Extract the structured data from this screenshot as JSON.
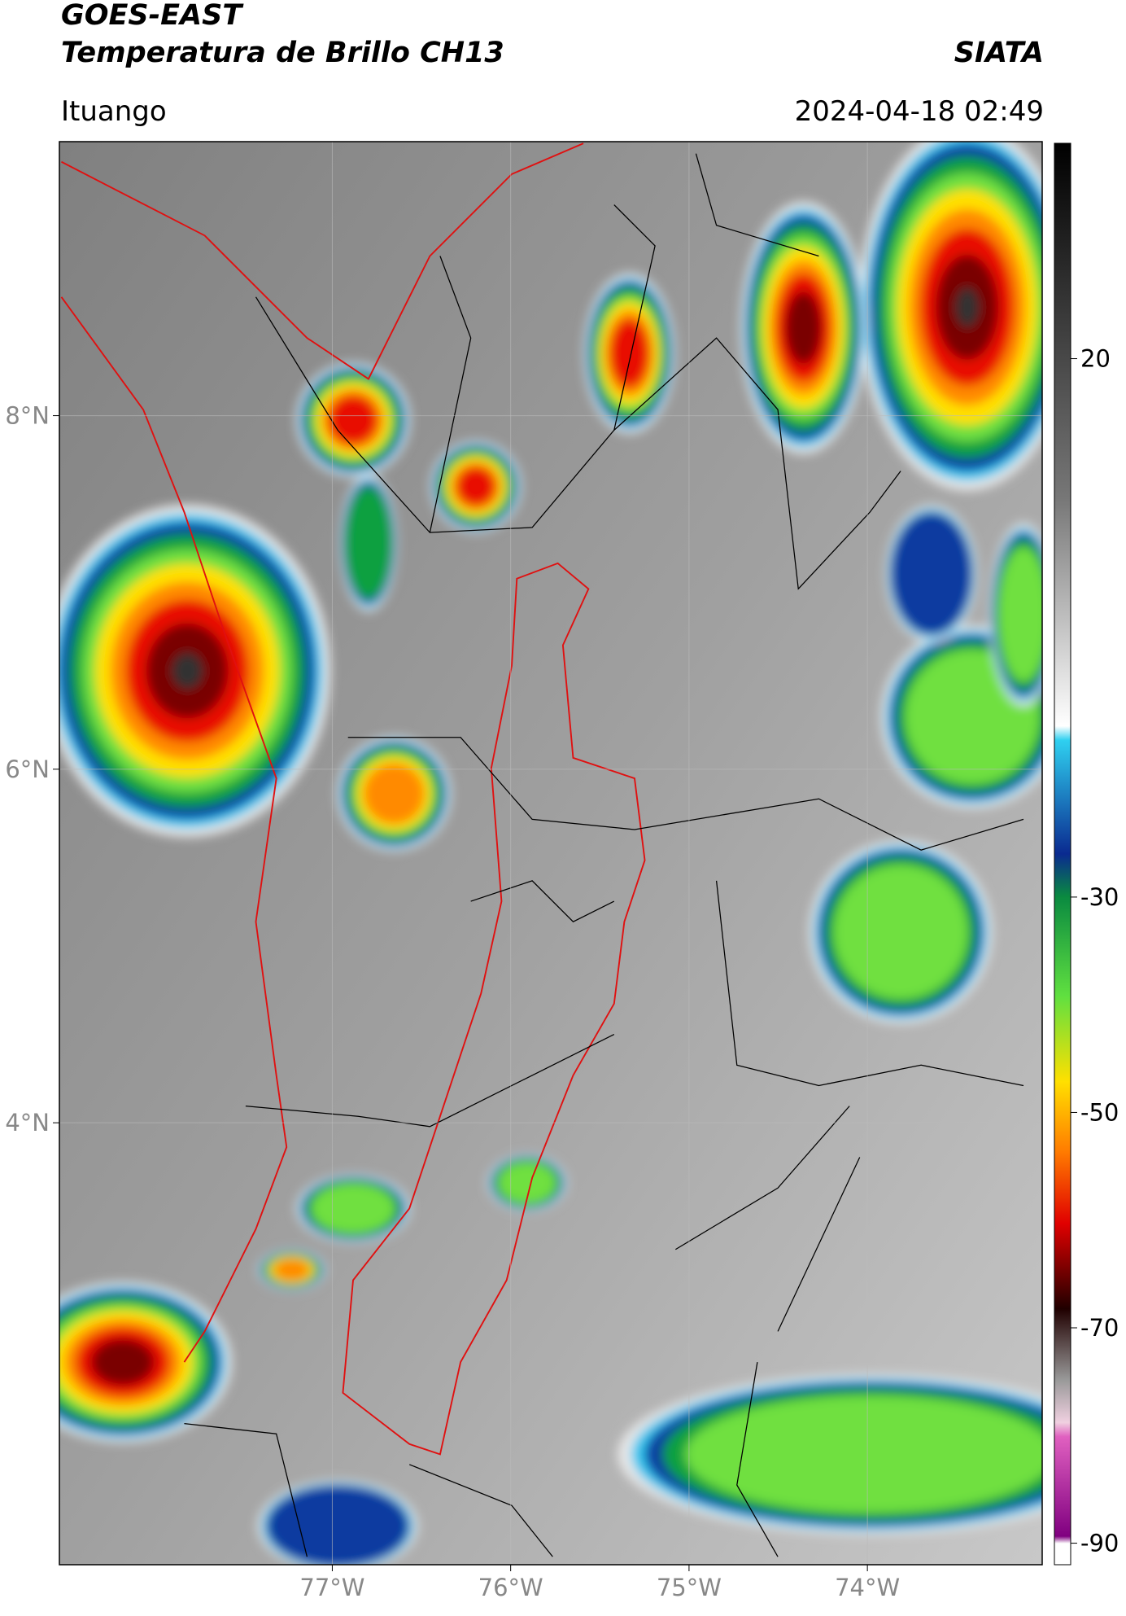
{
  "header": {
    "title_line1": "GOES-EAST",
    "title_line2": "Temperatura de Brillo CH13",
    "source": "SIATA",
    "region": "Ituango",
    "datetime": "2024-04-18 02:49"
  },
  "map": {
    "xlim": [
      -78.53,
      -73.02
    ],
    "ylim": [
      1.5,
      9.55
    ],
    "xticks": [
      {
        "value": -77,
        "label": "77°W"
      },
      {
        "value": -76,
        "label": "76°W"
      },
      {
        "value": -75,
        "label": "75°W"
      },
      {
        "value": -74,
        "label": "74°W"
      }
    ],
    "yticks": [
      {
        "value": 8,
        "label": "8°N"
      },
      {
        "value": 6,
        "label": "6°N"
      },
      {
        "value": 4,
        "label": "4°N"
      }
    ]
  },
  "colorbar": {
    "clim": [
      -92,
      40
    ],
    "ticks": [
      20,
      -30,
      -50,
      -70,
      -90
    ]
  }
}
